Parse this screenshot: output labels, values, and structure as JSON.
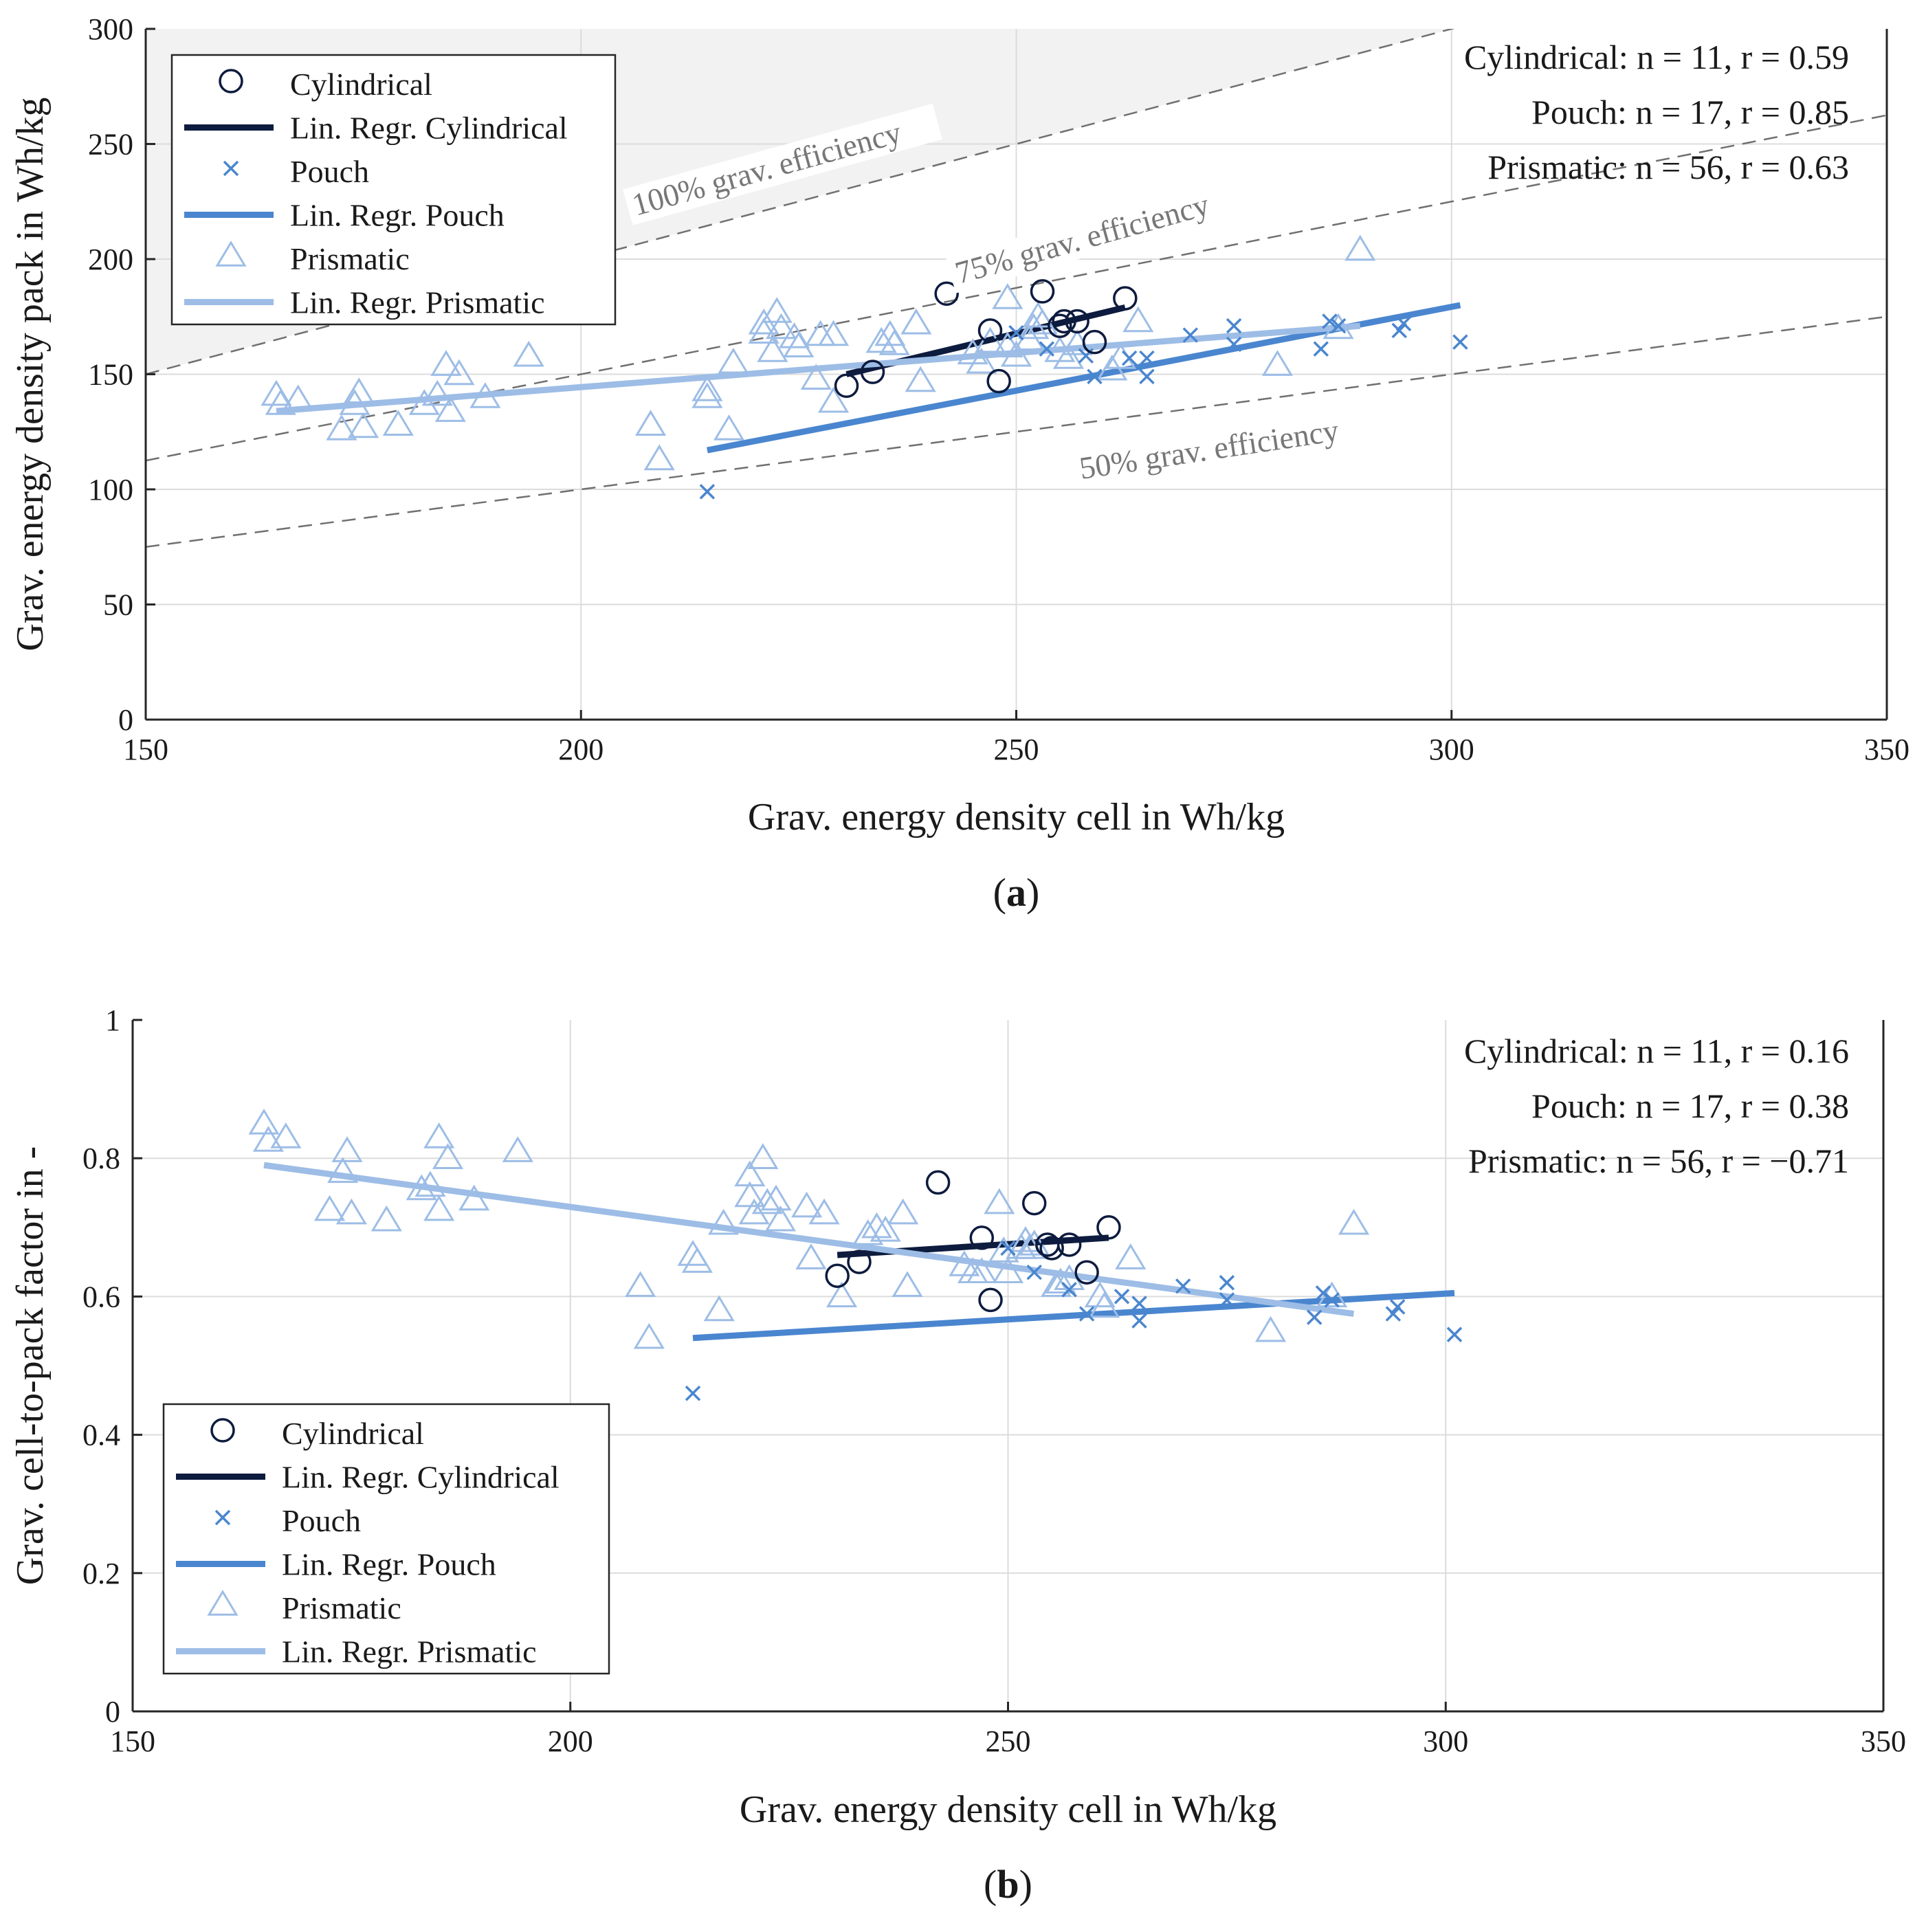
{
  "colors": {
    "cylindrical": "#0d1b3e",
    "pouch": "#4a86cf",
    "prismatic": "#9dbde6",
    "grid": "#dcdcdc",
    "efficiency_line": "#707070",
    "efficiency_region": "#f2f2f2"
  },
  "chart_data": [
    {
      "type": "scatter",
      "panel": "a",
      "caption_open": "(",
      "caption_letter": "a",
      "caption_close": ")",
      "xlabel": "Grav. energy density cell in Wh/kg",
      "ylabel": "Grav. energy density pack in Wh/kg",
      "xlim": [
        150,
        350
      ],
      "ylim": [
        0,
        300
      ],
      "xticks": [
        150,
        200,
        250,
        300,
        350
      ],
      "yticks": [
        0,
        50,
        100,
        150,
        200,
        250,
        300
      ],
      "grid": true,
      "legend_position": "top-left",
      "legend": [
        "Cylindrical",
        "Lin. Regr. Cylindrical",
        "Pouch",
        "Lin. Regr. Pouch",
        "Prismatic",
        "Lin. Regr. Prismatic"
      ],
      "stats": [
        "Cylindrical: n = 11, r = 0.59",
        "Pouch: n = 17, r = 0.85",
        "Prismatic: n = 56, r = 0.63"
      ],
      "efficiency_lines": [
        {
          "label": "100% grav. efficiency",
          "factor": 1.0
        },
        {
          "label": "75% grav. efficiency",
          "factor": 0.75
        },
        {
          "label": "50% grav. efficiency",
          "factor": 0.5
        }
      ],
      "series": [
        {
          "name": "Cylindrical",
          "marker": "circle",
          "color": "#0d1b3e",
          "points": [
            [
              230.5,
              145
            ],
            [
              233.5,
              151
            ],
            [
              242,
              185
            ],
            [
              247,
              169
            ],
            [
              248,
              147
            ],
            [
              253,
              186
            ],
            [
              255,
              171
            ],
            [
              255.5,
              173
            ],
            [
              257,
              173
            ],
            [
              259,
              164
            ],
            [
              262.5,
              183
            ]
          ]
        },
        {
          "name": "Pouch",
          "marker": "x",
          "color": "#4a86cf",
          "points": [
            [
              214.5,
              99
            ],
            [
              253.5,
              161
            ],
            [
              258,
              158
            ],
            [
              259,
              149
            ],
            [
              263,
              157
            ],
            [
              265,
              157
            ],
            [
              265,
              149
            ],
            [
              270,
              167
            ],
            [
              275,
              171
            ],
            [
              275,
              163
            ],
            [
              285,
              161
            ],
            [
              286,
              173
            ],
            [
              287,
              171
            ],
            [
              294,
              169
            ],
            [
              294.5,
              172
            ],
            [
              301,
              164
            ],
            [
              250,
              168
            ]
          ]
        },
        {
          "name": "Prismatic",
          "marker": "triangle",
          "color": "#9dbde6",
          "points": [
            [
              165,
              141
            ],
            [
              165.5,
              137
            ],
            [
              167.5,
              139
            ],
            [
              172.5,
              126
            ],
            [
              174,
              137
            ],
            [
              174.5,
              142
            ],
            [
              175,
              127
            ],
            [
              179,
              128
            ],
            [
              182,
              137
            ],
            [
              183.5,
              141
            ],
            [
              184.5,
              154
            ],
            [
              185,
              134
            ],
            [
              186,
              150
            ],
            [
              189,
              140
            ],
            [
              194,
              158
            ],
            [
              208,
              128
            ],
            [
              209,
              113
            ],
            [
              214.5,
              143
            ],
            [
              214.5,
              140
            ],
            [
              217,
              126
            ],
            [
              217.5,
              155
            ],
            [
              221,
              172
            ],
            [
              221,
              168
            ],
            [
              222,
              160
            ],
            [
              222.5,
              177
            ],
            [
              223,
              170
            ],
            [
              224.5,
              166
            ],
            [
              225,
              162
            ],
            [
              227,
              148
            ],
            [
              227.5,
              167
            ],
            [
              229,
              167
            ],
            [
              229,
              138
            ],
            [
              234.5,
              164
            ],
            [
              235.5,
              167
            ],
            [
              236,
              163
            ],
            [
              238.5,
              172
            ],
            [
              239,
              147
            ],
            [
              245,
              159
            ],
            [
              246,
              155
            ],
            [
              247,
              164
            ],
            [
              249,
              183
            ],
            [
              249,
              162
            ],
            [
              250,
              158
            ],
            [
              251.5,
              165
            ],
            [
              252,
              170
            ],
            [
              252.5,
              175
            ],
            [
              253,
              172
            ],
            [
              255,
              160
            ],
            [
              256,
              157
            ],
            [
              257,
              163
            ],
            [
              261,
              152
            ],
            [
              262,
              157
            ],
            [
              264,
              173
            ],
            [
              280,
              154
            ],
            [
              289.5,
              204
            ],
            [
              287,
              170
            ]
          ]
        }
      ],
      "regressions": [
        {
          "name": "Lin. Regr. Cylindrical",
          "color": "#0d1b3e",
          "x": [
            230.5,
            262.5
          ],
          "y": [
            150,
            179
          ]
        },
        {
          "name": "Lin. Regr. Pouch",
          "color": "#4a86cf",
          "x": [
            214.5,
            301
          ],
          "y": [
            117,
            180
          ]
        },
        {
          "name": "Lin. Regr. Prismatic",
          "color": "#9dbde6",
          "x": [
            165,
            289.5
          ],
          "y": [
            134,
            171
          ]
        }
      ]
    },
    {
      "type": "scatter",
      "panel": "b",
      "caption_open": "(",
      "caption_letter": "b",
      "caption_close": ")",
      "xlabel": "Grav. energy density cell in Wh/kg",
      "ylabel": "Grav. cell-to-pack factor in -",
      "xlim": [
        150,
        350
      ],
      "ylim": [
        0,
        1
      ],
      "xticks": [
        150,
        200,
        250,
        300,
        350
      ],
      "yticks": [
        0,
        0.2,
        0.4,
        0.6,
        0.8,
        1
      ],
      "ytick_labels": [
        "0",
        "0.2",
        "0.4",
        "0.6",
        "0.8",
        "1"
      ],
      "grid": true,
      "legend_position": "bottom-left",
      "legend": [
        "Cylindrical",
        "Lin. Regr. Cylindrical",
        "Pouch",
        "Lin. Regr. Pouch",
        "Prismatic",
        "Lin. Regr. Prismatic"
      ],
      "stats": [
        "Cylindrical: n = 11, r = 0.16",
        "Pouch: n = 17, r = 0.38",
        "Prismatic: n = 56, r = −0.71"
      ],
      "series": [
        {
          "name": "Cylindrical",
          "marker": "circle",
          "color": "#0d1b3e",
          "points": [
            [
              230.5,
              0.63
            ],
            [
              233,
              0.65
            ],
            [
              242,
              0.765
            ],
            [
              247,
              0.685
            ],
            [
              248,
              0.595
            ],
            [
              253,
              0.735
            ],
            [
              254.5,
              0.675
            ],
            [
              255,
              0.67
            ],
            [
              257,
              0.675
            ],
            [
              259,
              0.635
            ],
            [
              261.5,
              0.7
            ]
          ]
        },
        {
          "name": "Pouch",
          "marker": "x",
          "color": "#4a86cf",
          "points": [
            [
              214,
              0.46
            ],
            [
              253,
              0.635
            ],
            [
              257,
              0.61
            ],
            [
              259,
              0.575
            ],
            [
              263,
              0.6
            ],
            [
              265,
              0.59
            ],
            [
              265,
              0.565
            ],
            [
              270,
              0.615
            ],
            [
              275,
              0.62
            ],
            [
              275,
              0.595
            ],
            [
              285,
              0.57
            ],
            [
              286,
              0.605
            ],
            [
              287,
              0.595
            ],
            [
              294,
              0.575
            ],
            [
              294.5,
              0.585
            ],
            [
              301,
              0.545
            ],
            [
              250,
              0.67
            ]
          ]
        },
        {
          "name": "Prismatic",
          "marker": "triangle",
          "color": "#9dbde6",
          "points": [
            [
              165,
              0.85
            ],
            [
              165.5,
              0.825
            ],
            [
              167.5,
              0.83
            ],
            [
              172.5,
              0.725
            ],
            [
              174,
              0.78
            ],
            [
              174.5,
              0.81
            ],
            [
              175,
              0.72
            ],
            [
              179,
              0.71
            ],
            [
              183,
              0.755
            ],
            [
              184,
              0.76
            ],
            [
              185,
              0.83
            ],
            [
              185,
              0.725
            ],
            [
              186,
              0.8
            ],
            [
              189,
              0.74
            ],
            [
              194,
              0.81
            ],
            [
              208,
              0.615
            ],
            [
              209,
              0.54
            ],
            [
              214,
              0.66
            ],
            [
              214.5,
              0.65
            ],
            [
              217,
              0.58
            ],
            [
              217.5,
              0.705
            ],
            [
              220.5,
              0.775
            ],
            [
              220.5,
              0.745
            ],
            [
              221,
              0.72
            ],
            [
              222,
              0.8
            ],
            [
              222.5,
              0.735
            ],
            [
              223.5,
              0.74
            ],
            [
              224,
              0.71
            ],
            [
              227,
              0.73
            ],
            [
              227.5,
              0.655
            ],
            [
              229,
              0.72
            ],
            [
              231,
              0.6
            ],
            [
              234,
              0.69
            ],
            [
              235,
              0.7
            ],
            [
              236,
              0.695
            ],
            [
              238,
              0.72
            ],
            [
              238.5,
              0.615
            ],
            [
              245,
              0.645
            ],
            [
              246,
              0.635
            ],
            [
              247,
              0.635
            ],
            [
              249,
              0.735
            ],
            [
              249.5,
              0.665
            ],
            [
              250,
              0.635
            ],
            [
              251.5,
              0.67
            ],
            [
              252,
              0.68
            ],
            [
              252.5,
              0.67
            ],
            [
              253,
              0.675
            ],
            [
              255.5,
              0.615
            ],
            [
              256,
              0.62
            ],
            [
              257,
              0.625
            ],
            [
              260.5,
              0.6
            ],
            [
              261,
              0.585
            ],
            [
              264,
              0.655
            ],
            [
              280,
              0.55
            ],
            [
              289.5,
              0.705
            ],
            [
              287,
              0.6
            ]
          ]
        }
      ],
      "regressions": [
        {
          "name": "Lin. Regr. Cylindrical",
          "color": "#0d1b3e",
          "x": [
            230.5,
            261.5
          ],
          "y": [
            0.66,
            0.685
          ]
        },
        {
          "name": "Lin. Regr. Pouch",
          "color": "#4a86cf",
          "x": [
            214,
            301
          ],
          "y": [
            0.54,
            0.605
          ]
        },
        {
          "name": "Lin. Regr. Prismatic",
          "color": "#9dbde6",
          "x": [
            165,
            289.5
          ],
          "y": [
            0.79,
            0.575
          ]
        }
      ]
    }
  ]
}
